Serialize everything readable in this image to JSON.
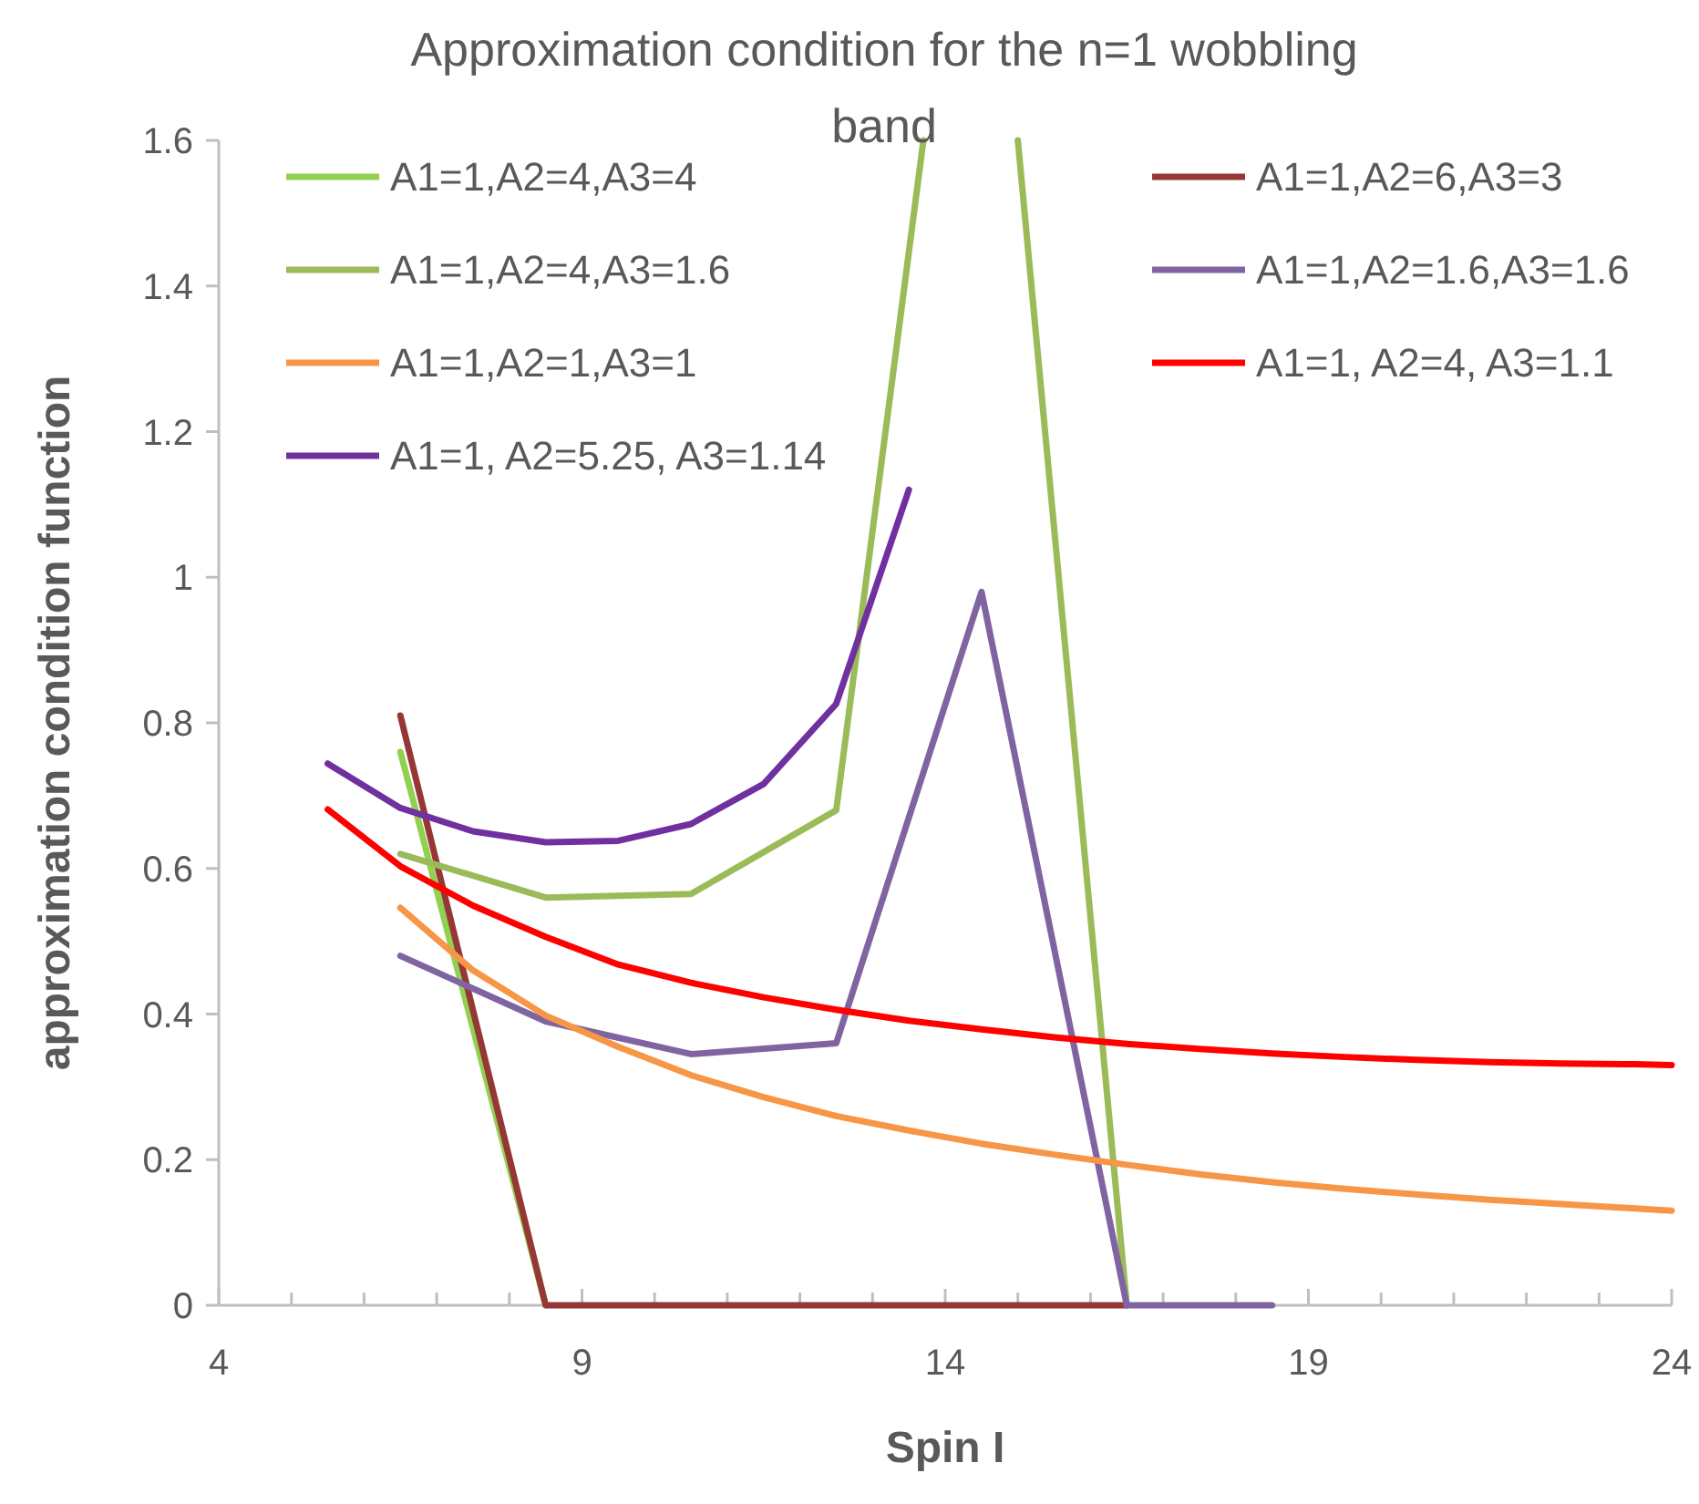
{
  "chart_data": {
    "type": "line",
    "title": "Approximation condition for the n=1 wobbling band",
    "xlabel": "Spin I",
    "ylabel": "approximation condition function",
    "xlim": [
      4,
      24
    ],
    "ylim": [
      0,
      1.6
    ],
    "xticks": [
      4,
      {
        "value": 5,
        "label": null
      },
      {
        "value": 6,
        "label": null
      },
      {
        "value": 7,
        "label": null
      },
      {
        "value": 8,
        "label": null
      },
      9,
      {
        "value": 10,
        "label": null
      },
      {
        "value": 11,
        "label": null
      },
      {
        "value": 12,
        "label": null
      },
      {
        "value": 13,
        "label": null
      },
      14,
      {
        "value": 15,
        "label": null
      },
      {
        "value": 16,
        "label": null
      },
      {
        "value": 17,
        "label": null
      },
      {
        "value": 18,
        "label": null
      },
      19,
      {
        "value": 20,
        "label": null
      },
      {
        "value": 21,
        "label": null
      },
      {
        "value": 22,
        "label": null
      },
      {
        "value": 23,
        "label": null
      },
      24
    ],
    "yticks": [
      0,
      0.2,
      0.4,
      0.6,
      0.8,
      1,
      1.2,
      1.4,
      1.6
    ],
    "grid": false,
    "legend": "top",
    "marker": "none",
    "line_style": "solid",
    "series": [
      {
        "name": "A1=1,A2=4,A3=4",
        "color": "#92d050",
        "x": [
          6.5,
          8.5
        ],
        "values": [
          0.76,
          0
        ]
      },
      {
        "name": "A1=1,A2=6,A3=3",
        "color": "#953735",
        "x": [
          6.5,
          8.5,
          10.5,
          12.5,
          14.5,
          16.5
        ],
        "values": [
          0.81,
          0,
          0,
          0,
          0,
          0
        ]
      },
      {
        "name": "A1=1,A2=4,A3=1.6",
        "color": "#9bbb59",
        "x": [
          6.5,
          8.5,
          10.5,
          12.5,
          13.7,
          14.5,
          15,
          16.5
        ],
        "values": [
          0.62,
          0.56,
          0.565,
          0.68,
          1.6,
          null,
          1.6,
          0
        ]
      },
      {
        "name": "A1=1,A2=1.6,A3=1.6",
        "color": "#8064a2",
        "x": [
          6.5,
          8.5,
          10.5,
          12.5,
          14.5,
          16.5,
          18.5
        ],
        "values": [
          0.48,
          0.39,
          0.345,
          0.36,
          0.98,
          0,
          0
        ]
      },
      {
        "name": "A1=1,A2=1,A3=1",
        "color": "#f79646",
        "x": [
          6.5,
          7.5,
          8.5,
          9.5,
          10.5,
          11.5,
          12.5,
          13.5,
          14.5,
          15.5,
          16.5,
          17.5,
          18.5,
          19.5,
          20.5,
          21.5,
          22.5,
          23.5,
          24
        ],
        "values": [
          0.546,
          0.46,
          0.398,
          0.355,
          0.316,
          0.286,
          0.26,
          0.24,
          0.222,
          0.207,
          0.193,
          0.18,
          0.169,
          0.16,
          0.152,
          0.145,
          0.139,
          0.133,
          0.13
        ]
      },
      {
        "name": "A1=1, A2=4, A3=1.1",
        "color": "#ff0000",
        "x": [
          5.5,
          6.5,
          7.5,
          8.5,
          9.5,
          10.5,
          11.5,
          12.5,
          13.5,
          14.5,
          15.5,
          16.5,
          17.5,
          18.5,
          19.5,
          20.5,
          21.5,
          22.5,
          23.5,
          24
        ],
        "values": [
          0.681,
          0.603,
          0.549,
          0.506,
          0.468,
          0.443,
          0.423,
          0.406,
          0.391,
          0.379,
          0.368,
          0.359,
          0.352,
          0.346,
          0.341,
          0.337,
          0.334,
          0.332,
          0.331,
          0.33
        ]
      },
      {
        "name": "A1=1, A2=5.25, A3=1.14",
        "color": "#7030a0",
        "x": [
          5.5,
          6.5,
          7.5,
          8.5,
          9.5,
          10.5,
          11.5,
          12.5,
          13.5
        ],
        "values": [
          0.744,
          0.683,
          0.651,
          0.636,
          0.638,
          0.661,
          0.716,
          0.826,
          1.12
        ]
      }
    ]
  }
}
